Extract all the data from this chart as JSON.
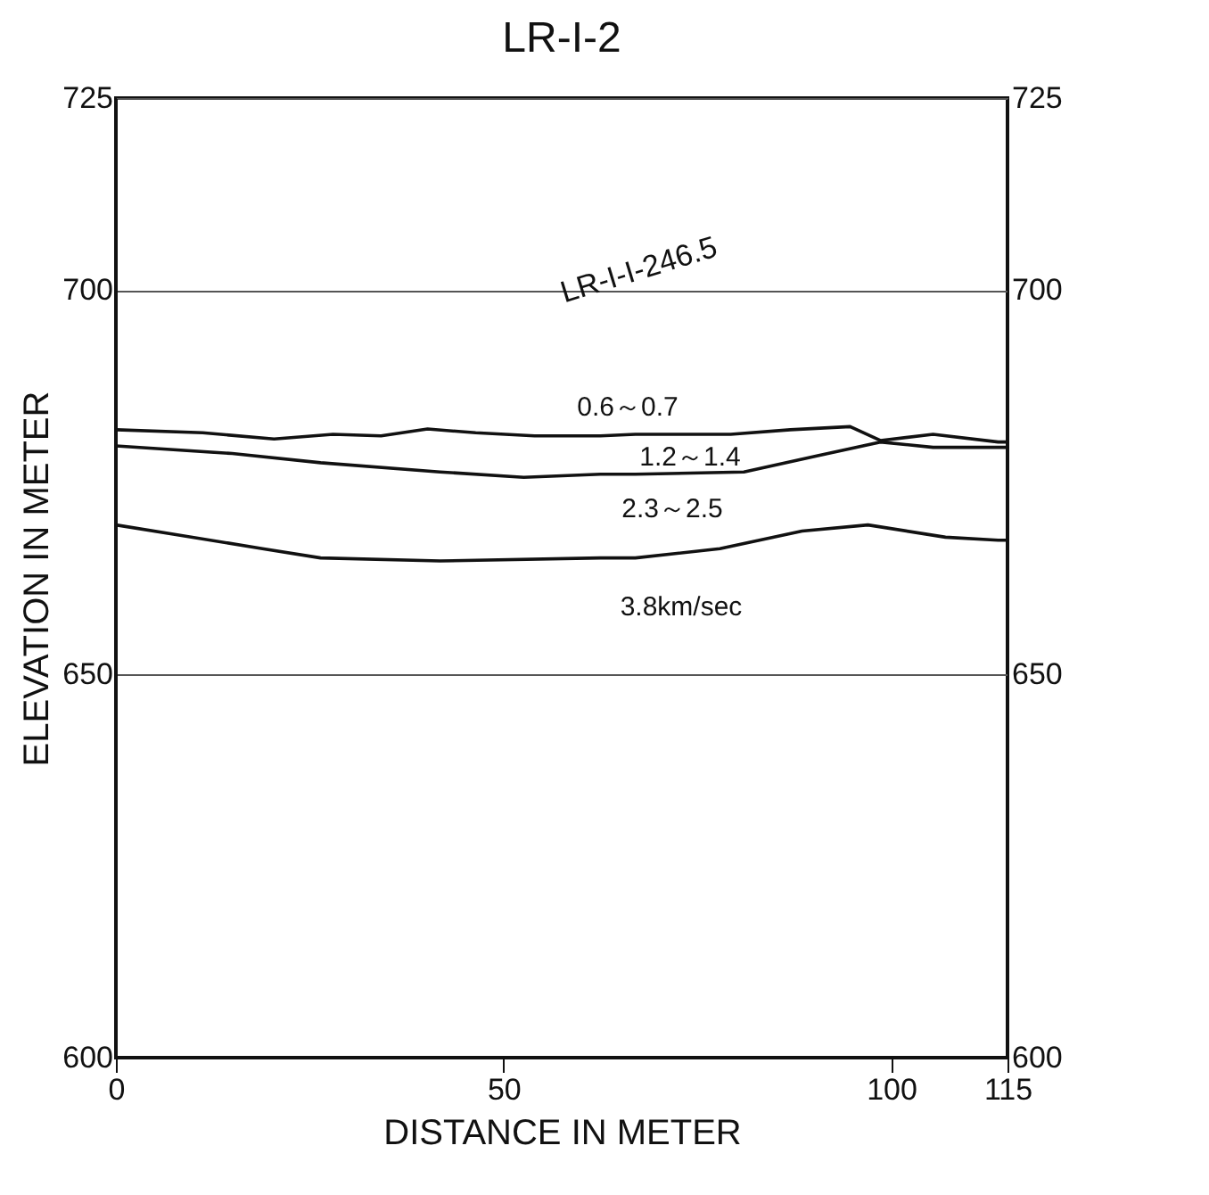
{
  "chart_data": {
    "type": "line",
    "title": "LR-I-2",
    "xlabel": "DISTANCE IN METER",
    "ylabel": "ELEVATION IN METER",
    "xlim": [
      0,
      115
    ],
    "xticks": [
      0,
      50,
      100,
      115
    ],
    "ylim": [
      600,
      725
    ],
    "yticks": [
      600,
      650,
      700,
      725
    ],
    "y2lim": [
      600,
      725
    ],
    "y2ticks": [
      600,
      650,
      700,
      725
    ],
    "grid": "y",
    "marker": "none",
    "line_style": "solid",
    "series": [
      {
        "color": "#111111",
        "x": [
          0,
          11.2,
          20.4,
          28,
          34.2,
          40.2,
          46.4,
          54,
          62.5,
          67,
          79.3,
          87,
          94.7,
          98.6,
          105.4,
          113.8,
          115
        ],
        "values": [
          681.8,
          681.4,
          680.6,
          681.2,
          681,
          681.9,
          681.4,
          681,
          681,
          681.2,
          681.2,
          681.8,
          682.2,
          680.4,
          681.2,
          680.2,
          680.2
        ]
      },
      {
        "color": "#111111",
        "x": [
          0,
          15,
          26.4,
          41.8,
          52.6,
          62.5,
          67,
          81,
          90,
          98.6,
          105.4,
          113.8,
          115
        ],
        "values": [
          679.7,
          678.7,
          677.5,
          676.3,
          675.6,
          676,
          676,
          676.3,
          678.3,
          680.2,
          679.5,
          679.5,
          679.5
        ]
      },
      {
        "color": "#111111",
        "x": [
          0,
          7.4,
          18.9,
          26.4,
          41.8,
          62.5,
          67,
          77.9,
          88.5,
          97,
          107,
          113.8,
          115
        ],
        "values": [
          669.4,
          668.2,
          666.3,
          665.1,
          664.7,
          665.1,
          665.1,
          666.3,
          668.6,
          669.4,
          667.8,
          667.4,
          667.4
        ]
      }
    ],
    "annotations": [
      "LR-I-I-246.5",
      "0.6～0.7",
      "1.2～1.4",
      "2.3～2.5",
      "3.8km/sec"
    ]
  }
}
